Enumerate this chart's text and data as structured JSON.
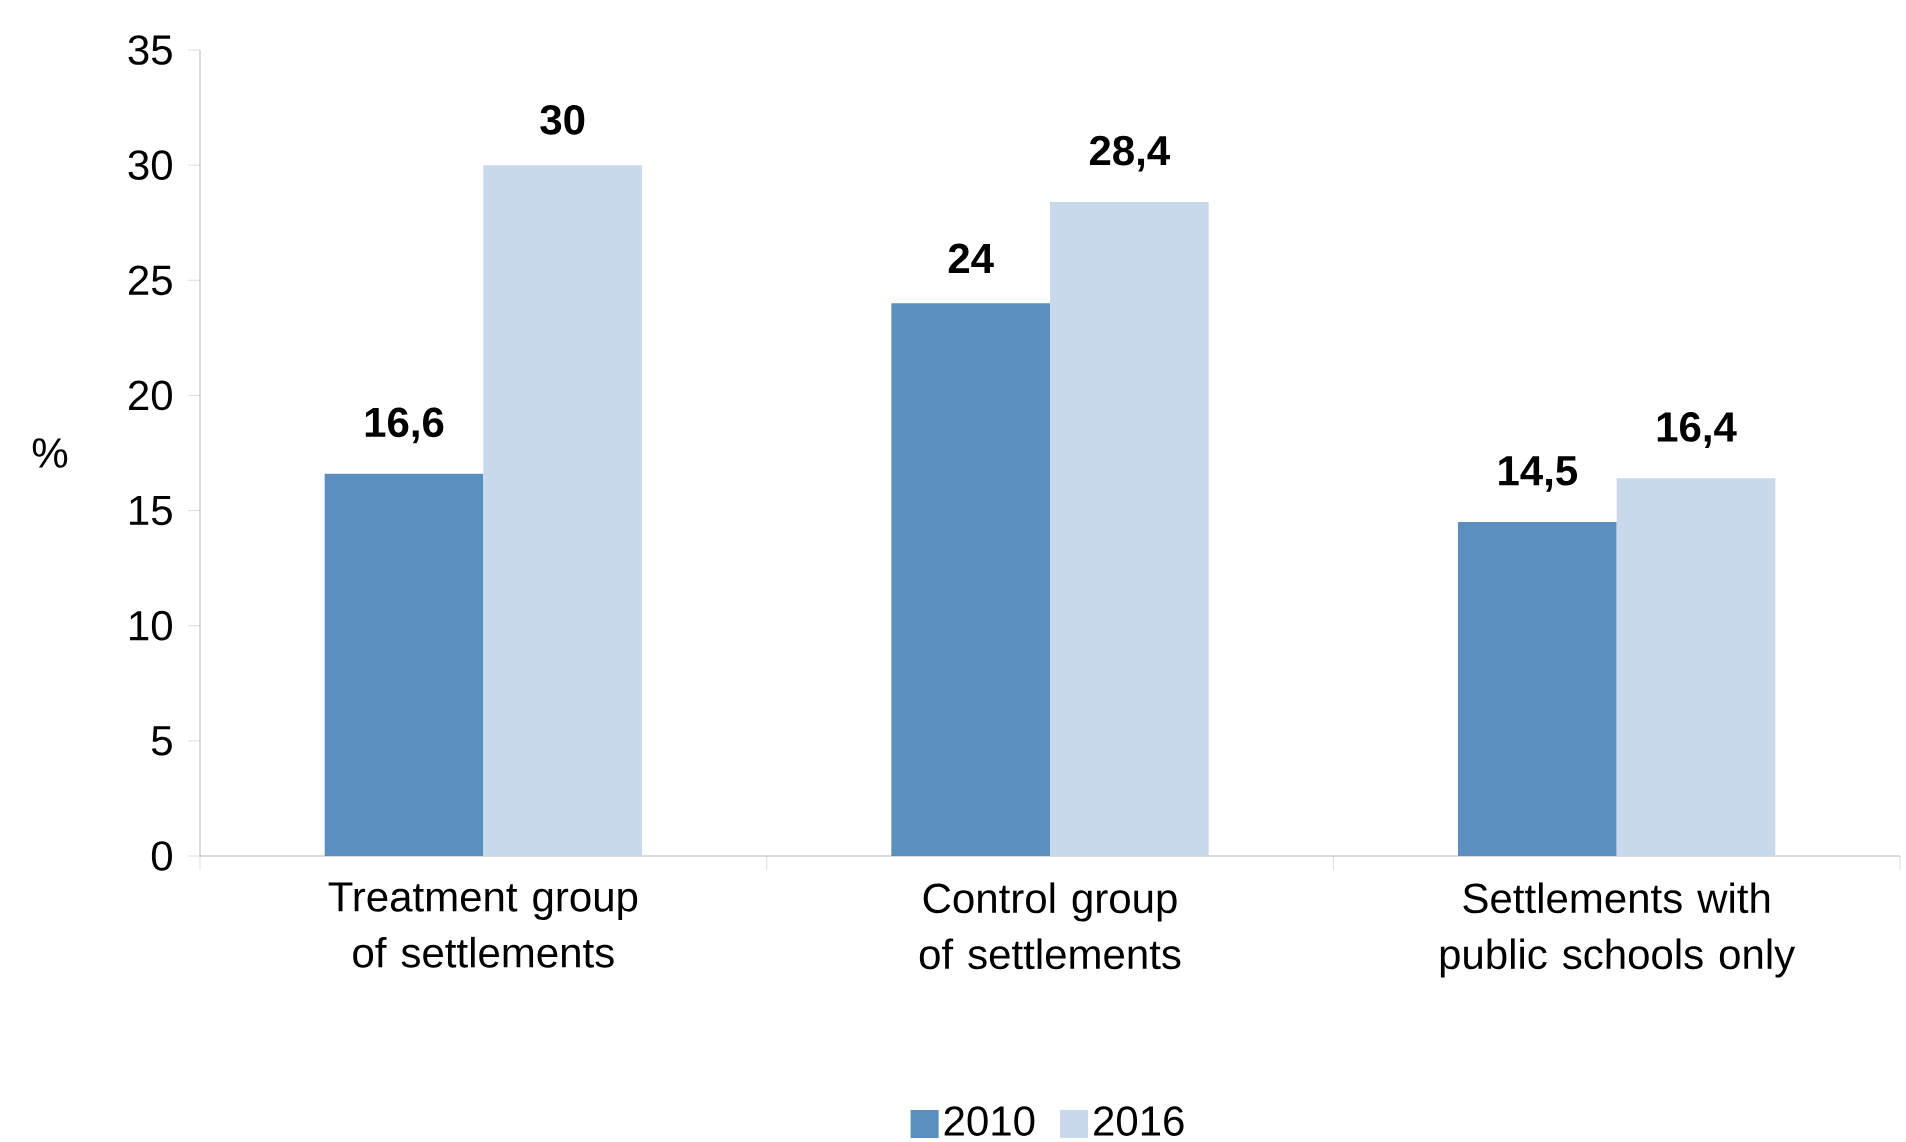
{
  "chart_data": {
    "type": "bar",
    "ylabel": "%",
    "categories": [
      "Treatment group of settlements",
      "Control group of settlements",
      "Settlements with public schools only"
    ],
    "series": [
      {
        "name": "2010",
        "color": "#5b8fc0",
        "values": [
          16.6,
          24,
          14.5
        ],
        "value_labels": [
          "16,6",
          "24",
          "14,5"
        ]
      },
      {
        "name": "2016",
        "color": "#c8d9eb",
        "values": [
          30,
          28.4,
          16.4
        ],
        "value_labels": [
          "30",
          "28,4",
          "16,4"
        ]
      }
    ],
    "ylim": [
      0,
      35
    ],
    "yticks": [
      0,
      5,
      10,
      15,
      20,
      25,
      30,
      35
    ],
    "legend": "bottom"
  }
}
